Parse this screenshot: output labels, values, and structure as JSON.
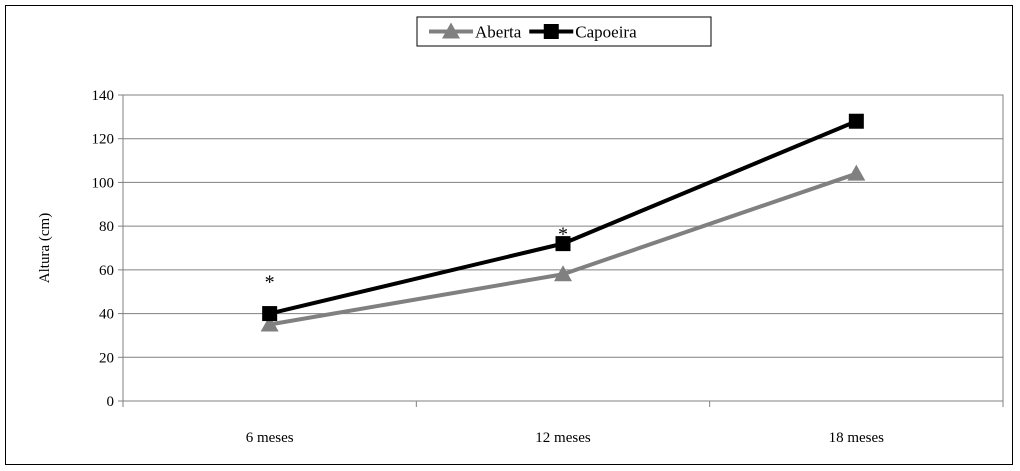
{
  "chart_data": {
    "type": "line",
    "categories": [
      "6 meses",
      "12 meses",
      "18 meses"
    ],
    "series": [
      {
        "name": "Aberta",
        "values": [
          35,
          58,
          104
        ],
        "color": "#808080",
        "marker": "triangle"
      },
      {
        "name": "Capoeira",
        "values": [
          40,
          72,
          128
        ],
        "color": "#000000",
        "marker": "square"
      }
    ],
    "title": "",
    "xlabel": "",
    "ylabel": "Altura (cm)",
    "ylim": [
      0,
      140
    ],
    "yticks": [
      0,
      20,
      40,
      60,
      80,
      100,
      120,
      140
    ],
    "grid": true,
    "legend_position": "top-center",
    "annotations": [
      {
        "text": "*",
        "category": "6 meses",
        "y": 56
      },
      {
        "text": "*",
        "category": "12 meses",
        "y": 78
      }
    ]
  }
}
